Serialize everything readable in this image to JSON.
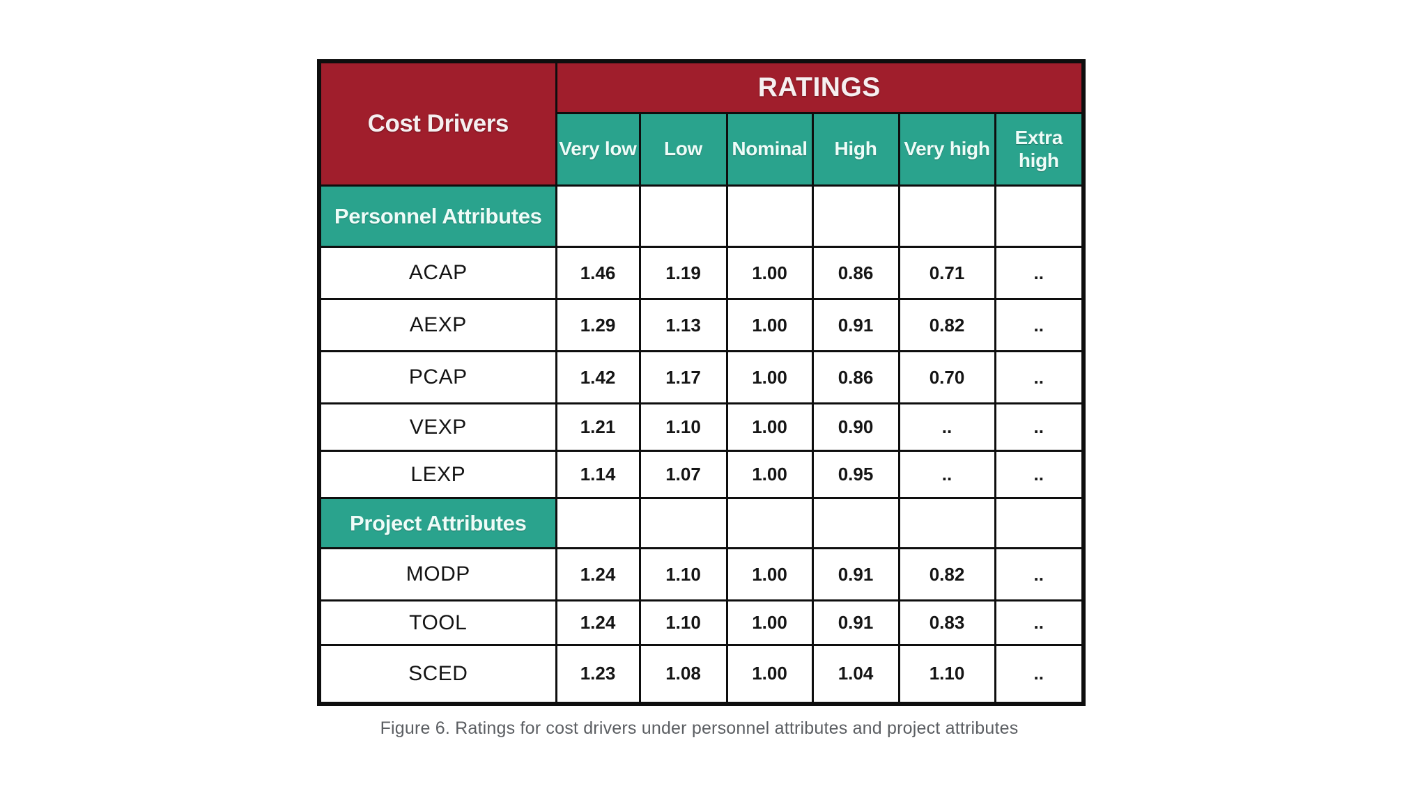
{
  "colors": {
    "header_red": "#A01E2C",
    "header_teal": "#2AA38D",
    "border_black": "#0E0E0E",
    "caption_gray": "#5B5E62"
  },
  "chart_data": {
    "type": "table",
    "title": "RATINGS",
    "corner_header": "Cost Drivers",
    "columns": [
      "Very low",
      "Low",
      "Nominal",
      "High",
      "Very high",
      "Extra high"
    ],
    "sections": [
      {
        "label": "Personnel Attributes",
        "rows": [
          {
            "driver": "ACAP",
            "values": [
              "1.46",
              "1.19",
              "1.00",
              "0.86",
              "0.71",
              ".."
            ]
          },
          {
            "driver": "AEXP",
            "values": [
              "1.29",
              "1.13",
              "1.00",
              "0.91",
              "0.82",
              ".."
            ]
          },
          {
            "driver": "PCAP",
            "values": [
              "1.42",
              "1.17",
              "1.00",
              "0.86",
              "0.70",
              ".."
            ]
          },
          {
            "driver": "VEXP",
            "values": [
              "1.21",
              "1.10",
              "1.00",
              "0.90",
              "..",
              ".."
            ]
          },
          {
            "driver": "LEXP",
            "values": [
              "1.14",
              "1.07",
              "1.00",
              "0.95",
              "..",
              ".."
            ]
          }
        ]
      },
      {
        "label": "Project Attributes",
        "rows": [
          {
            "driver": "MODP",
            "values": [
              "1.24",
              "1.10",
              "1.00",
              "0.91",
              "0.82",
              ".."
            ]
          },
          {
            "driver": "TOOL",
            "values": [
              "1.24",
              "1.10",
              "1.00",
              "0.91",
              "0.83",
              ".."
            ]
          },
          {
            "driver": "SCED",
            "values": [
              "1.23",
              "1.08",
              "1.00",
              "1.04",
              "1.10",
              ".."
            ]
          }
        ]
      }
    ],
    "caption": "Figure 6. Ratings for cost drivers under personnel attributes and project attributes"
  }
}
